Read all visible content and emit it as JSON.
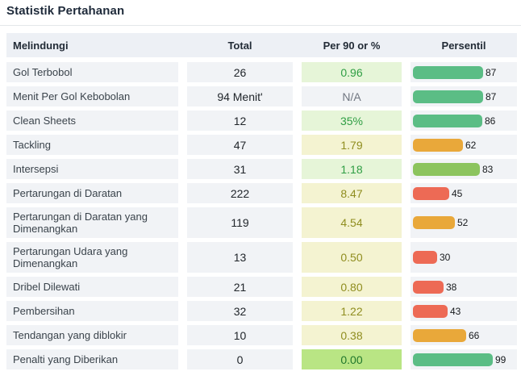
{
  "title": "Statistik Pertahanan",
  "table": {
    "headers": [
      "Melindungi",
      "Total",
      "Per 90 or %",
      "Persentil"
    ],
    "rows": [
      {
        "label": "Gol Terbobol",
        "total": "26",
        "per90": "0.96",
        "per90_style": "good",
        "percentile": 87,
        "bar_color": "#5bbd85"
      },
      {
        "label": "Menit Per Gol Kebobolan",
        "total": "94 Menit'",
        "per90": "N/A",
        "per90_style": "na",
        "percentile": 87,
        "bar_color": "#5bbd85"
      },
      {
        "label": "Clean Sheets",
        "total": "12",
        "per90": "35%",
        "per90_style": "good",
        "percentile": 86,
        "bar_color": "#5bbd85"
      },
      {
        "label": "Tackling",
        "total": "47",
        "per90": "1.79",
        "per90_style": "mid",
        "percentile": 62,
        "bar_color": "#e9a83a"
      },
      {
        "label": "Intersepsi",
        "total": "31",
        "per90": "1.18",
        "per90_style": "good",
        "percentile": 83,
        "bar_color": "#8cc45e"
      },
      {
        "label": "Pertarungan di Daratan",
        "total": "222",
        "per90": "8.47",
        "per90_style": "mid",
        "percentile": 45,
        "bar_color": "#ed6a55"
      },
      {
        "label": "Pertarungan di Daratan yang Dimenangkan",
        "total": "119",
        "per90": "4.54",
        "per90_style": "mid",
        "percentile": 52,
        "bar_color": "#e9a83a"
      },
      {
        "label": "Pertarungan Udara yang Dimenangkan",
        "total": "13",
        "per90": "0.50",
        "per90_style": "mid",
        "percentile": 30,
        "bar_color": "#ed6a55"
      },
      {
        "label": "Dribel Dilewati",
        "total": "21",
        "per90": "0.80",
        "per90_style": "mid",
        "percentile": 38,
        "bar_color": "#ed6a55"
      },
      {
        "label": "Pembersihan",
        "total": "32",
        "per90": "1.22",
        "per90_style": "mid",
        "percentile": 43,
        "bar_color": "#ed6a55"
      },
      {
        "label": "Tendangan yang diblokir",
        "total": "10",
        "per90": "0.38",
        "per90_style": "mid",
        "percentile": 66,
        "bar_color": "#e9a83a"
      },
      {
        "label": "Penalti yang Diberikan",
        "total": "0",
        "per90": "0.00",
        "per90_style": "great",
        "percentile": 99,
        "bar_color": "#5bbd85"
      }
    ]
  },
  "colors": {
    "header_bg": "#edf0f5",
    "row_bg": "#f1f3f6",
    "green_cell_bg": "#e6f5d8",
    "green_cell_text": "#2f9e44",
    "strong_green_cell_bg": "#b9e584",
    "strong_green_cell_text": "#20772c",
    "yellow_cell_bg": "#f4f3d1",
    "yellow_cell_text": "#8f8d1f",
    "bar_green": "#5bbd85",
    "bar_light_green": "#8cc45e",
    "bar_orange": "#e9a83a",
    "bar_red": "#ed6a55"
  }
}
